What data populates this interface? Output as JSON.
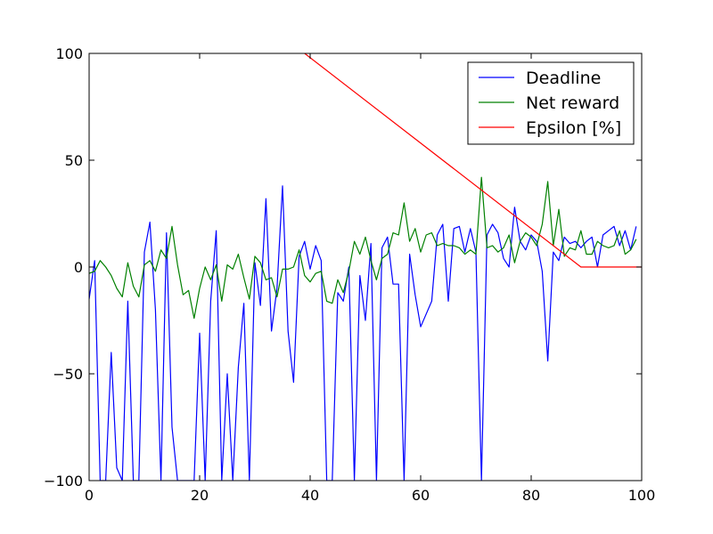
{
  "chart_data": {
    "type": "line",
    "title": "",
    "xlabel": "",
    "ylabel": "",
    "xlim": [
      0,
      100
    ],
    "ylim": [
      -100,
      100
    ],
    "x_ticks": [
      0,
      20,
      40,
      60,
      80,
      100
    ],
    "x_tick_labels": [
      "0",
      "20",
      "40",
      "60",
      "80",
      "100"
    ],
    "y_ticks": [
      -100,
      -50,
      0,
      50,
      100
    ],
    "y_tick_labels": [
      "−100",
      "−50",
      "0",
      "50",
      "100"
    ],
    "grid": false,
    "legend_position": "top-right",
    "series": [
      {
        "name": "Deadline",
        "color": "#0000ff",
        "x": [
          0,
          1,
          2,
          3,
          4,
          5,
          6,
          7,
          8,
          9,
          10,
          11,
          12,
          13,
          14,
          15,
          16,
          17,
          18,
          19,
          20,
          21,
          22,
          23,
          24,
          25,
          26,
          27,
          28,
          29,
          30,
          31,
          32,
          33,
          34,
          35,
          36,
          37,
          38,
          39,
          40,
          41,
          42,
          43,
          44,
          45,
          46,
          47,
          48,
          49,
          50,
          51,
          52,
          53,
          54,
          55,
          56,
          57,
          58,
          59,
          60,
          61,
          62,
          63,
          64,
          65,
          66,
          67,
          68,
          69,
          70,
          71,
          72,
          73,
          74,
          75,
          76,
          77,
          78,
          79,
          80,
          81,
          82,
          83,
          84,
          85,
          86,
          87,
          88,
          89,
          90,
          91,
          92,
          93,
          94,
          95,
          96,
          97,
          98,
          99
        ],
        "y": [
          -15,
          3,
          -100,
          -100,
          -40,
          -94,
          -100,
          -16,
          -100,
          -100,
          7,
          21,
          -20,
          -100,
          16,
          -75,
          -100,
          -100,
          -100,
          -100,
          -31,
          -100,
          -16,
          17,
          -100,
          -50,
          -100,
          -47,
          -17,
          -100,
          2,
          -18,
          32,
          -30,
          -10,
          38,
          -30,
          -54,
          5,
          12,
          -1,
          10,
          3,
          -100,
          -100,
          -12,
          -16,
          0,
          -100,
          -4,
          -25,
          11,
          -100,
          9,
          14,
          -8,
          -8,
          -100,
          6,
          -13,
          -28,
          -22,
          -16,
          15,
          20,
          -16,
          18,
          19,
          7,
          18,
          7,
          -100,
          15,
          20,
          16,
          4,
          0,
          28,
          12,
          8,
          15,
          12,
          -2,
          -44,
          7,
          3,
          14,
          11,
          12,
          9,
          12,
          14,
          0,
          15,
          17,
          19,
          10,
          17,
          8,
          19
        ]
      },
      {
        "name": "Net reward",
        "color": "#008000",
        "x": [
          0,
          1,
          2,
          3,
          4,
          5,
          6,
          7,
          8,
          9,
          10,
          11,
          12,
          13,
          14,
          15,
          16,
          17,
          18,
          19,
          20,
          21,
          22,
          23,
          24,
          25,
          26,
          27,
          28,
          29,
          30,
          31,
          32,
          33,
          34,
          35,
          36,
          37,
          38,
          39,
          40,
          41,
          42,
          43,
          44,
          45,
          46,
          47,
          48,
          49,
          50,
          51,
          52,
          53,
          54,
          55,
          56,
          57,
          58,
          59,
          60,
          61,
          62,
          63,
          64,
          65,
          66,
          67,
          68,
          69,
          70,
          71,
          72,
          73,
          74,
          75,
          76,
          77,
          78,
          79,
          80,
          81,
          82,
          83,
          84,
          85,
          86,
          87,
          88,
          89,
          90,
          91,
          92,
          93,
          94,
          95,
          96,
          97,
          98,
          99
        ],
        "y": [
          -3,
          -2,
          3,
          0,
          -4,
          -10,
          -14,
          2,
          -9,
          -14,
          1,
          3,
          -2,
          8,
          4,
          19,
          1,
          -13,
          -11,
          -24,
          -10,
          0,
          -6,
          1,
          -16,
          1,
          -1,
          6,
          -5,
          -15,
          5,
          2,
          -6,
          -5,
          -14,
          -1,
          -1,
          0,
          8,
          -4,
          -7,
          -3,
          -2,
          -16,
          -17,
          -6,
          -12,
          -2,
          12,
          6,
          14,
          3,
          -6,
          4,
          6,
          16,
          15,
          30,
          12,
          18,
          7,
          15,
          16,
          10,
          11,
          10,
          10,
          9,
          6,
          8,
          6,
          42,
          9,
          10,
          7,
          9,
          15,
          2,
          12,
          16,
          14,
          10,
          20,
          40,
          10,
          27,
          5,
          9,
          8,
          17,
          6,
          6,
          12,
          10,
          9,
          10,
          17,
          6,
          8,
          13
        ]
      },
      {
        "name": "Epsilon [%]",
        "color": "#ff0000",
        "x": [
          39,
          89,
          100
        ],
        "y": [
          100,
          0,
          0
        ]
      }
    ]
  }
}
